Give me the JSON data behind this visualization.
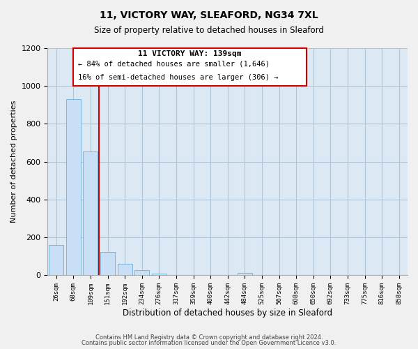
{
  "title": "11, VICTORY WAY, SLEAFORD, NG34 7XL",
  "subtitle": "Size of property relative to detached houses in Sleaford",
  "xlabel": "Distribution of detached houses by size in Sleaford",
  "ylabel": "Number of detached properties",
  "bar_labels": [
    "26sqm",
    "68sqm",
    "109sqm",
    "151sqm",
    "192sqm",
    "234sqm",
    "276sqm",
    "317sqm",
    "359sqm",
    "400sqm",
    "442sqm",
    "484sqm",
    "525sqm",
    "567sqm",
    "608sqm",
    "650sqm",
    "692sqm",
    "733sqm",
    "775sqm",
    "816sqm",
    "858sqm"
  ],
  "bar_values": [
    160,
    930,
    655,
    125,
    62,
    28,
    10,
    0,
    0,
    0,
    0,
    12,
    0,
    0,
    0,
    0,
    0,
    0,
    0,
    0,
    0
  ],
  "bar_color": "#c8dff5",
  "bar_edge_color": "#6baed6",
  "vline_x": 2.5,
  "vline_color": "#cc0000",
  "ylim": [
    0,
    1200
  ],
  "yticks": [
    0,
    200,
    400,
    600,
    800,
    1000,
    1200
  ],
  "annotation_title": "11 VICTORY WAY: 139sqm",
  "annotation_line1": "← 84% of detached houses are smaller (1,646)",
  "annotation_line2": "16% of semi-detached houses are larger (306) →",
  "footer1": "Contains HM Land Registry data © Crown copyright and database right 2024.",
  "footer2": "Contains public sector information licensed under the Open Government Licence v3.0.",
  "plot_bg_color": "#dce9f5",
  "fig_bg_color": "#f0f0f0",
  "grid_color": "#b0c4d8"
}
